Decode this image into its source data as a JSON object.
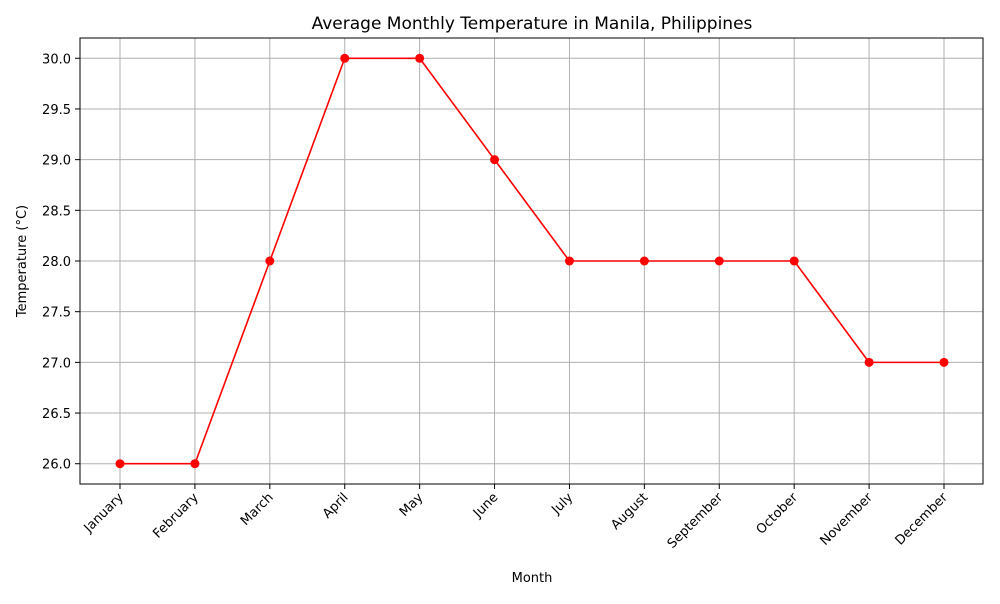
{
  "chart_data": {
    "type": "line",
    "title": "Average Monthly Temperature in Manila, Philippines",
    "xlabel": "Month",
    "ylabel": "Temperature (°C)",
    "categories": [
      "January",
      "February",
      "March",
      "April",
      "May",
      "June",
      "July",
      "August",
      "September",
      "October",
      "November",
      "December"
    ],
    "series": [
      {
        "values": [
          26.0,
          26.0,
          28.0,
          30.0,
          30.0,
          29.0,
          28.0,
          28.0,
          28.0,
          28.0,
          27.0,
          27.0
        ],
        "color": "#ff0000",
        "marker": "circle"
      }
    ],
    "ylim": [
      25.8,
      30.2
    ],
    "yticks": [
      "26.0",
      "26.5",
      "27.0",
      "27.5",
      "28.0",
      "28.5",
      "29.0",
      "29.5",
      "30.0"
    ],
    "grid": true,
    "legend": false
  }
}
